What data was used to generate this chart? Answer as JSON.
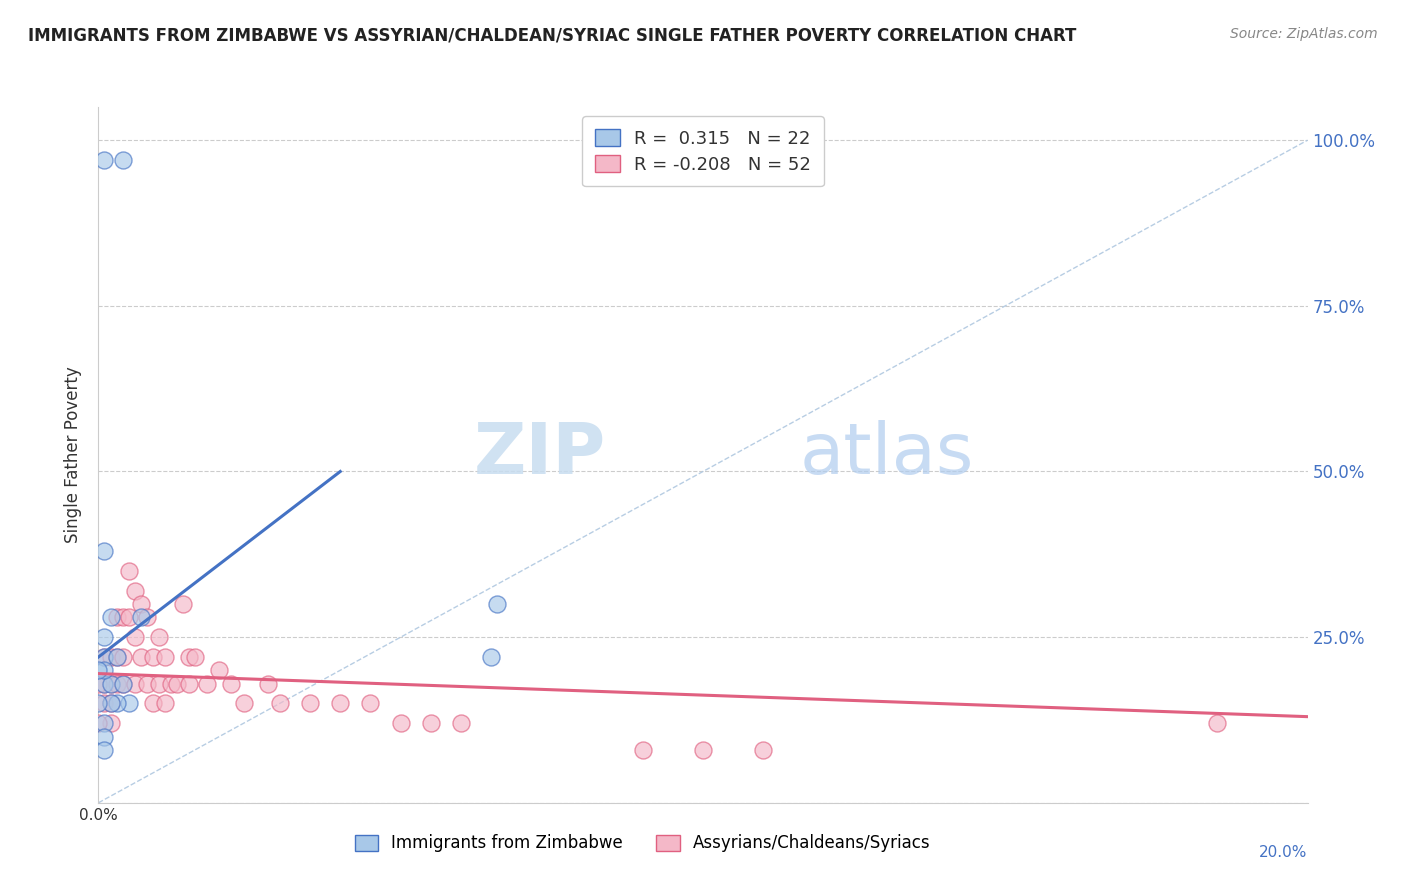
{
  "title": "IMMIGRANTS FROM ZIMBABWE VS ASSYRIAN/CHALDEAN/SYRIAC SINGLE FATHER POVERTY CORRELATION CHART",
  "source": "Source: ZipAtlas.com",
  "ylabel": "Single Father Poverty",
  "color_blue": "#a8c8e8",
  "color_pink": "#f4b8c8",
  "color_blue_line": "#4472c4",
  "color_pink_line": "#e06080",
  "color_diag": "#b0c8e0",
  "watermark_zip": "ZIP",
  "watermark_atlas": "atlas",
  "legend_r1": "R =  0.315",
  "legend_n1": "N = 22",
  "legend_r2": "R = -0.208",
  "legend_n2": "N = 52",
  "legend_label_blue": "Immigrants from Zimbabwe",
  "legend_label_pink": "Assyrians/Chaldeans/Syriacs",
  "background_color": "#ffffff",
  "grid_color": "#cccccc",
  "blue_scatter_x": [
    0.001,
    0.004,
    0.001,
    0.002,
    0.001,
    0.003,
    0.001,
    0.002,
    0.005,
    0.003,
    0.007,
    0.001,
    0.001,
    0.004,
    0.002,
    0.001,
    0.001,
    0.001,
    0.066,
    0.065,
    0.0,
    0.0
  ],
  "blue_scatter_y": [
    0.97,
    0.97,
    0.38,
    0.28,
    0.22,
    0.22,
    0.18,
    0.18,
    0.15,
    0.15,
    0.28,
    0.25,
    0.2,
    0.18,
    0.15,
    0.12,
    0.1,
    0.08,
    0.3,
    0.22,
    0.2,
    0.15
  ],
  "pink_scatter_x": [
    0.001,
    0.001,
    0.001,
    0.002,
    0.002,
    0.002,
    0.002,
    0.003,
    0.003,
    0.003,
    0.004,
    0.004,
    0.004,
    0.005,
    0.005,
    0.006,
    0.006,
    0.006,
    0.007,
    0.007,
    0.008,
    0.008,
    0.009,
    0.009,
    0.01,
    0.01,
    0.011,
    0.011,
    0.012,
    0.013,
    0.014,
    0.015,
    0.015,
    0.016,
    0.018,
    0.02,
    0.022,
    0.024,
    0.028,
    0.03,
    0.035,
    0.04,
    0.045,
    0.05,
    0.055,
    0.06,
    0.09,
    0.1,
    0.11,
    0.185,
    0.0,
    0.0
  ],
  "pink_scatter_y": [
    0.22,
    0.18,
    0.15,
    0.22,
    0.18,
    0.15,
    0.12,
    0.28,
    0.22,
    0.18,
    0.28,
    0.22,
    0.18,
    0.35,
    0.28,
    0.32,
    0.25,
    0.18,
    0.3,
    0.22,
    0.28,
    0.18,
    0.22,
    0.15,
    0.25,
    0.18,
    0.22,
    0.15,
    0.18,
    0.18,
    0.3,
    0.22,
    0.18,
    0.22,
    0.18,
    0.2,
    0.18,
    0.15,
    0.18,
    0.15,
    0.15,
    0.15,
    0.15,
    0.12,
    0.12,
    0.12,
    0.08,
    0.08,
    0.08,
    0.12,
    0.18,
    0.12
  ],
  "blue_line_x": [
    0.0,
    0.04
  ],
  "blue_line_y": [
    0.22,
    0.5
  ],
  "pink_line_x": [
    0.0,
    0.2
  ],
  "pink_line_y": [
    0.195,
    0.13
  ],
  "diag_line_x": [
    0.0,
    0.2
  ],
  "diag_line_y": [
    0.0,
    1.0
  ],
  "xlim": [
    0.0,
    0.2
  ],
  "ylim": [
    0.0,
    1.05
  ]
}
